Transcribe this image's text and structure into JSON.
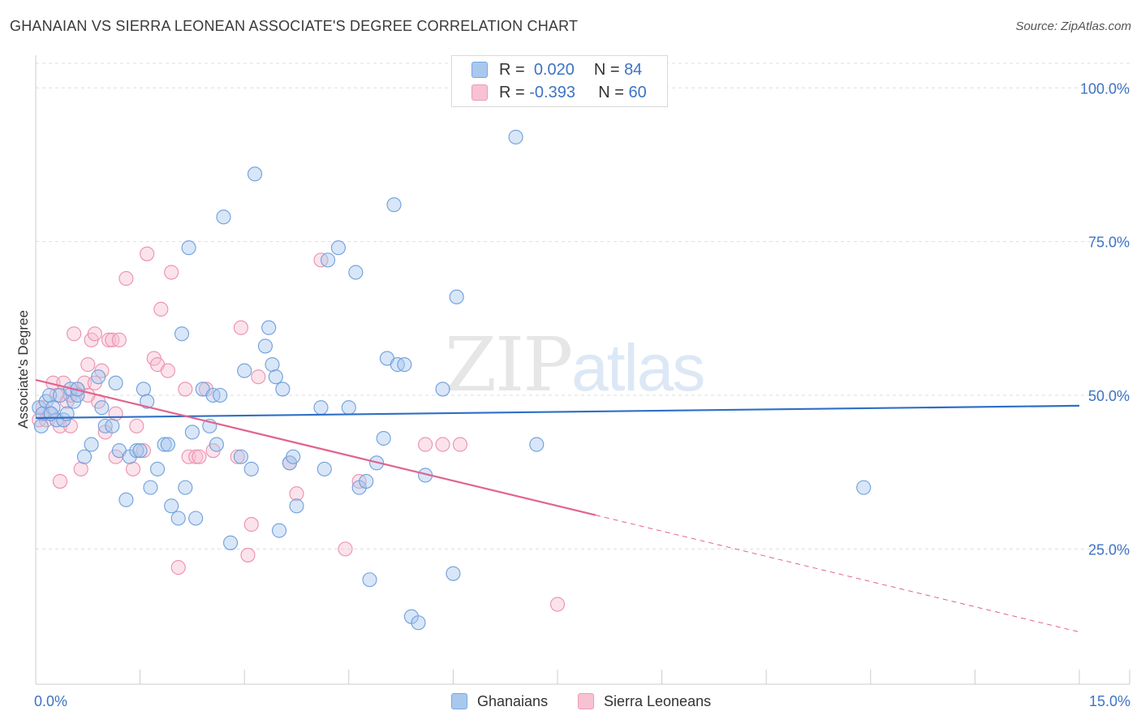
{
  "title": "GHANAIAN VS SIERRA LEONEAN ASSOCIATE'S DEGREE CORRELATION CHART",
  "source": "Source: ZipAtlas.com",
  "watermark": {
    "zip": "ZIP",
    "atlas": "atlas"
  },
  "legend": {
    "rows": [
      {
        "r_label": "R =",
        "r_value": "0.020",
        "n_label": "N =",
        "n_value": "84",
        "color": "#a9c8ee",
        "border": "#7aa6dd"
      },
      {
        "r_label": "R =",
        "r_value": "-0.393",
        "n_label": "N =",
        "n_value": "60",
        "color": "#f7c2d2",
        "border": "#ef9ab4"
      }
    ]
  },
  "bottom_legend": [
    {
      "label": "Ghanaians",
      "color": "#a9c8ee",
      "border": "#7aa6dd"
    },
    {
      "label": "Sierra Leoneans",
      "color": "#f7c2d2",
      "border": "#ef9ab4"
    }
  ],
  "chart_data": {
    "type": "scatter",
    "title": "GHANAIAN VS SIERRA LEONEAN ASSOCIATE'S DEGREE CORRELATION CHART",
    "xlabel": "",
    "ylabel": "Associate's Degree",
    "xlim": [
      0,
      15
    ],
    "ylim": [
      3,
      104
    ],
    "x_tick_labels": [
      {
        "value": 0,
        "label": "0.0%"
      },
      {
        "value": 15,
        "label": "15.0%"
      }
    ],
    "y_tick_labels": [
      {
        "value": 100,
        "label": "100.0%"
      },
      {
        "value": 75,
        "label": "75.0%"
      },
      {
        "value": 50,
        "label": "50.0%"
      },
      {
        "value": 25,
        "label": "25.0%"
      }
    ],
    "grid": true,
    "series": [
      {
        "name": "Ghanaians",
        "color": "#6f9fdc",
        "fill": "rgba(169,200,238,0.45)",
        "trend": {
          "x": [
            0,
            15
          ],
          "y": [
            46.3,
            48.3
          ],
          "color": "#2f6fc6"
        },
        "points": [
          [
            0.05,
            48
          ],
          [
            0.1,
            47
          ],
          [
            0.15,
            49
          ],
          [
            0.2,
            50
          ],
          [
            0.25,
            48
          ],
          [
            0.3,
            46
          ],
          [
            0.35,
            50
          ],
          [
            0.4,
            46
          ],
          [
            0.45,
            47
          ],
          [
            0.5,
            51
          ],
          [
            0.55,
            49
          ],
          [
            0.6,
            50
          ],
          [
            0.7,
            40
          ],
          [
            0.8,
            42
          ],
          [
            0.9,
            53
          ],
          [
            0.95,
            48
          ],
          [
            1.0,
            45
          ],
          [
            1.1,
            45
          ],
          [
            1.15,
            52
          ],
          [
            1.2,
            41
          ],
          [
            1.3,
            33
          ],
          [
            1.35,
            40
          ],
          [
            1.45,
            41
          ],
          [
            1.5,
            41
          ],
          [
            1.55,
            51
          ],
          [
            1.6,
            49
          ],
          [
            1.65,
            35
          ],
          [
            1.75,
            38
          ],
          [
            1.85,
            42
          ],
          [
            1.9,
            42
          ],
          [
            1.95,
            32
          ],
          [
            2.05,
            30
          ],
          [
            2.1,
            60
          ],
          [
            2.15,
            35
          ],
          [
            2.2,
            74
          ],
          [
            2.25,
            44
          ],
          [
            2.3,
            30
          ],
          [
            2.4,
            51
          ],
          [
            2.5,
            45
          ],
          [
            2.55,
            50
          ],
          [
            2.6,
            42
          ],
          [
            2.65,
            50
          ],
          [
            2.7,
            79
          ],
          [
            2.8,
            26
          ],
          [
            2.95,
            40
          ],
          [
            3.0,
            54
          ],
          [
            3.1,
            38
          ],
          [
            3.15,
            86
          ],
          [
            3.3,
            58
          ],
          [
            3.35,
            61
          ],
          [
            3.4,
            55
          ],
          [
            3.45,
            53
          ],
          [
            3.5,
            28
          ],
          [
            3.55,
            51
          ],
          [
            3.65,
            39
          ],
          [
            3.7,
            40
          ],
          [
            3.75,
            32
          ],
          [
            4.1,
            48
          ],
          [
            4.15,
            38
          ],
          [
            4.2,
            72
          ],
          [
            4.35,
            74
          ],
          [
            4.5,
            48
          ],
          [
            4.6,
            70
          ],
          [
            4.65,
            35
          ],
          [
            4.75,
            36
          ],
          [
            4.8,
            20
          ],
          [
            4.9,
            39
          ],
          [
            5.0,
            43
          ],
          [
            5.05,
            56
          ],
          [
            5.15,
            81
          ],
          [
            5.2,
            55
          ],
          [
            5.3,
            55
          ],
          [
            5.4,
            14
          ],
          [
            5.5,
            13
          ],
          [
            5.6,
            37
          ],
          [
            5.85,
            51
          ],
          [
            6.0,
            21
          ],
          [
            6.05,
            66
          ],
          [
            6.9,
            92
          ],
          [
            7.2,
            42
          ],
          [
            11.9,
            35
          ],
          [
            0.08,
            45
          ],
          [
            0.22,
            47
          ],
          [
            0.6,
            51
          ]
        ]
      },
      {
        "name": "Sierra Leoneans",
        "color": "#ec8fae",
        "fill": "rgba(247,194,210,0.45)",
        "trend": {
          "x": [
            0,
            8.05
          ],
          "y": [
            52.5,
            30.5
          ],
          "color": "#e0648f",
          "dashed_to": {
            "x": 15,
            "y": 11.5
          }
        },
        "points": [
          [
            0.05,
            46
          ],
          [
            0.1,
            48
          ],
          [
            0.15,
            46
          ],
          [
            0.25,
            52
          ],
          [
            0.3,
            50
          ],
          [
            0.35,
            45
          ],
          [
            0.4,
            52
          ],
          [
            0.45,
            49
          ],
          [
            0.5,
            50
          ],
          [
            0.55,
            60
          ],
          [
            0.6,
            51
          ],
          [
            0.65,
            38
          ],
          [
            0.7,
            52
          ],
          [
            0.75,
            55
          ],
          [
            0.8,
            59
          ],
          [
            0.85,
            60
          ],
          [
            0.9,
            49
          ],
          [
            0.95,
            54
          ],
          [
            1.0,
            44
          ],
          [
            1.05,
            59
          ],
          [
            1.1,
            59
          ],
          [
            1.15,
            47
          ],
          [
            1.2,
            59
          ],
          [
            1.3,
            69
          ],
          [
            1.4,
            38
          ],
          [
            1.45,
            45
          ],
          [
            1.55,
            41
          ],
          [
            1.6,
            73
          ],
          [
            1.7,
            56
          ],
          [
            1.75,
            55
          ],
          [
            1.8,
            64
          ],
          [
            1.9,
            54
          ],
          [
            1.95,
            70
          ],
          [
            2.05,
            22
          ],
          [
            2.2,
            40
          ],
          [
            2.3,
            40
          ],
          [
            2.35,
            40
          ],
          [
            2.45,
            51
          ],
          [
            2.55,
            41
          ],
          [
            2.9,
            40
          ],
          [
            2.95,
            61
          ],
          [
            3.05,
            24
          ],
          [
            3.1,
            29
          ],
          [
            3.2,
            53
          ],
          [
            3.65,
            39
          ],
          [
            3.75,
            34
          ],
          [
            4.1,
            72
          ],
          [
            4.45,
            25
          ],
          [
            4.65,
            36
          ],
          [
            5.6,
            42
          ],
          [
            5.85,
            42
          ],
          [
            6.1,
            42
          ],
          [
            7.5,
            16
          ],
          [
            0.85,
            52
          ],
          [
            0.35,
            36
          ],
          [
            0.5,
            45
          ],
          [
            0.2,
            47
          ],
          [
            0.75,
            50
          ],
          [
            2.15,
            51
          ],
          [
            1.15,
            40
          ]
        ]
      }
    ]
  }
}
